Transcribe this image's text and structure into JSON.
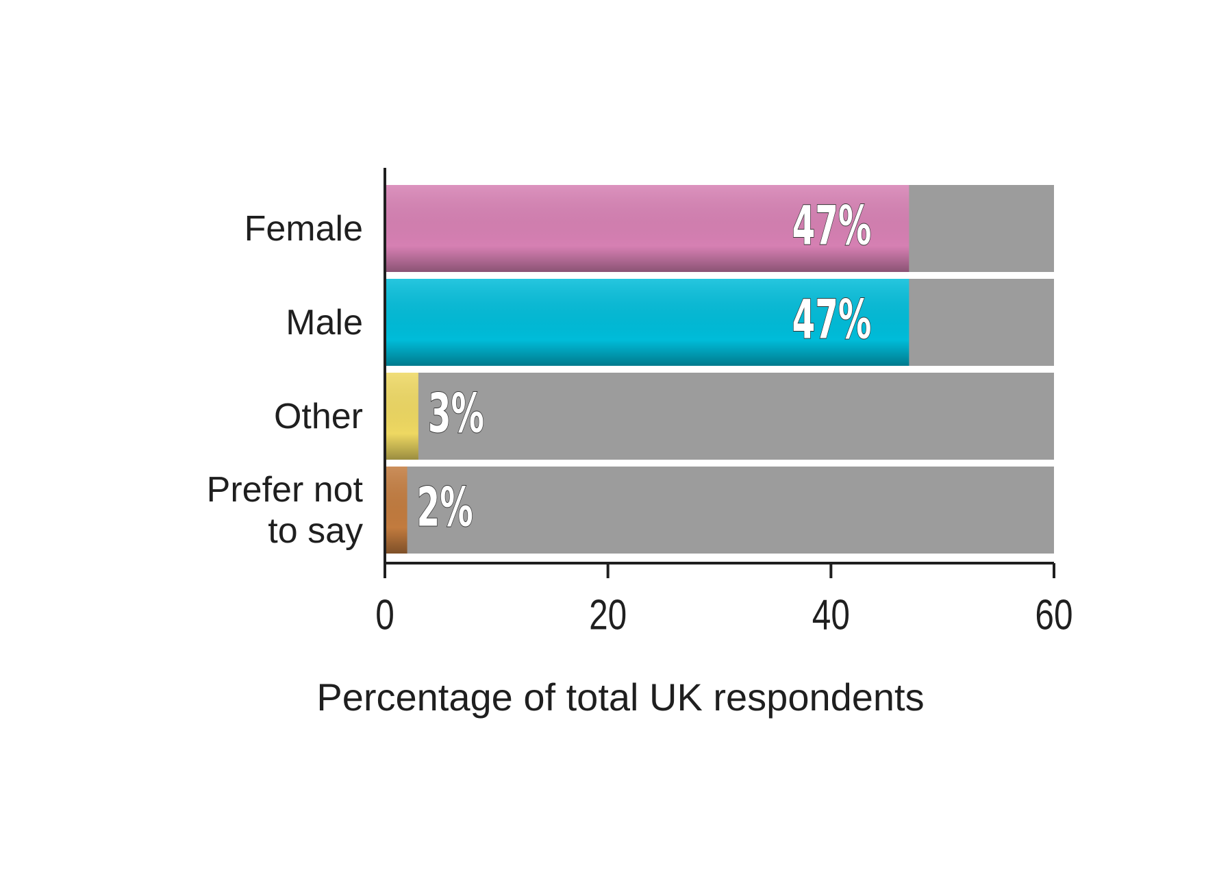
{
  "chart_data": {
    "type": "bar",
    "orientation": "horizontal",
    "categories": [
      "Female",
      "Male",
      "Other",
      "Prefer not to say"
    ],
    "values": [
      47,
      47,
      3,
      2
    ],
    "value_labels": [
      "47%",
      "47%",
      "3%",
      "2%"
    ],
    "colors": [
      "#d680b3",
      "#00bcd9",
      "#eed862",
      "#c27b3e"
    ],
    "xlabel": "Percentage of total UK respondents",
    "xlim": [
      0,
      60
    ],
    "xticks": [
      0,
      20,
      40,
      60
    ]
  }
}
